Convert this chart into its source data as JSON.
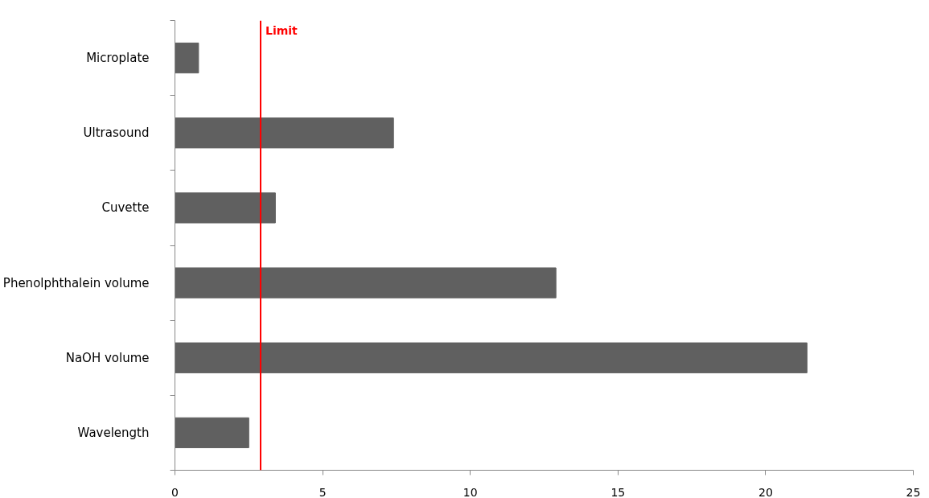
{
  "chart_data": {
    "type": "bar",
    "orientation": "horizontal",
    "categories": [
      "Microplate",
      "Ultrasound",
      "Cuvette",
      "Phenolphthalein volume",
      "NaOH volume",
      "Wavelength"
    ],
    "values": [
      0.8,
      7.4,
      3.4,
      12.9,
      21.4,
      2.5
    ],
    "color": "#606060",
    "xlim": [
      0,
      25
    ],
    "xticks": [
      0,
      5,
      10,
      15,
      20,
      25
    ],
    "ref_lines": [
      {
        "axis": "x",
        "value": 2.9,
        "label": "Limit",
        "color": "#ff0000"
      }
    ]
  }
}
